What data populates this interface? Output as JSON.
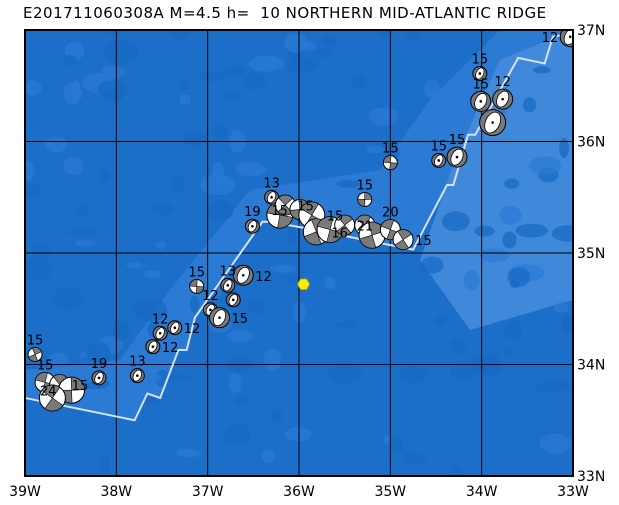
{
  "title": "E201711060308A M=4.5 h=  10 NORTHERN MID-ATLANTIC RIDGE",
  "map": {
    "lon_range": [
      -39,
      -33
    ],
    "lat_range": [
      33,
      37
    ],
    "lon_ticks": [
      {
        "v": -39,
        "label": "39W"
      },
      {
        "v": -38,
        "label": "38W"
      },
      {
        "v": -37,
        "label": "37W"
      },
      {
        "v": -36,
        "label": "36W"
      },
      {
        "v": -35,
        "label": "35W"
      },
      {
        "v": -34,
        "label": "34W"
      },
      {
        "v": -33,
        "label": "33W"
      }
    ],
    "lat_ticks": [
      {
        "v": 33,
        "label": "33N"
      },
      {
        "v": 34,
        "label": "34N"
      },
      {
        "v": 35,
        "label": "35N"
      },
      {
        "v": 36,
        "label": "36N"
      },
      {
        "v": 37,
        "label": "37N"
      }
    ],
    "colors": {
      "ocean_deep": "#1b6fc9",
      "ocean_mid": "#2b7bd4",
      "ocean_shallow": "#4a8edf",
      "ridge": "#d8e0f8",
      "compressional": "#7a7a7a",
      "dilatational": "#ffffff",
      "epicenter": "#ffee00"
    },
    "epicenter": {
      "lon": -35.95,
      "lat": 34.72,
      "icon": "yellow-hexagon"
    },
    "ridge_axis": [
      [
        -39,
        33.7
      ],
      [
        -37.8,
        33.5
      ],
      [
        -37.66,
        33.74
      ],
      [
        -37.52,
        33.7
      ],
      [
        -37.32,
        34.13
      ],
      [
        -37.23,
        34.13
      ],
      [
        -37.14,
        34.42
      ],
      [
        -36.4,
        35.28
      ],
      [
        -36.32,
        35.28
      ],
      [
        -35.91,
        35.22
      ],
      [
        -34.75,
        35.03
      ],
      [
        -34.38,
        35.61
      ],
      [
        -34.31,
        35.61
      ],
      [
        -34.15,
        36.06
      ],
      [
        -34.07,
        36.06
      ],
      [
        -33.6,
        36.75
      ],
      [
        -33.31,
        36.7
      ],
      [
        -33.22,
        36.94
      ],
      [
        -33,
        36.97
      ]
    ],
    "events": [
      {
        "lon": -33.03,
        "lat": 36.94,
        "depth": "12",
        "size": "m",
        "mech": "normal"
      },
      {
        "lon": -34.02,
        "lat": 36.61,
        "depth": "15",
        "size": "s",
        "mech": "normal"
      },
      {
        "lon": -34.01,
        "lat": 36.36,
        "depth": "15",
        "size": "m",
        "mech": "normal"
      },
      {
        "lon": -33.77,
        "lat": 36.38,
        "depth": "12",
        "size": "m",
        "mech": "normal"
      },
      {
        "lon": -33.88,
        "lat": 36.17,
        "depth": "",
        "size": "l",
        "mech": "normal"
      },
      {
        "lon": -35.0,
        "lat": 35.81,
        "depth": "15",
        "size": "s",
        "mech": "strike-slip"
      },
      {
        "lon": -34.47,
        "lat": 35.83,
        "depth": "15",
        "size": "s",
        "mech": "normal"
      },
      {
        "lon": -34.27,
        "lat": 35.86,
        "depth": "15",
        "size": "m",
        "mech": "normal"
      },
      {
        "lon": -36.51,
        "lat": 35.24,
        "depth": "19",
        "size": "s",
        "mech": "normal"
      },
      {
        "lon": -36.3,
        "lat": 35.5,
        "depth": "13",
        "size": "s",
        "mech": "normal"
      },
      {
        "lon": -36.21,
        "lat": 35.34,
        "depth": "",
        "size": "l",
        "mech": "strike-slip"
      },
      {
        "lon": -36.15,
        "lat": 35.43,
        "depth": "15",
        "size": "m",
        "mech": "strike-slip"
      },
      {
        "lon": -35.99,
        "lat": 35.39,
        "depth": "15",
        "size": "m",
        "mech": "strike-slip"
      },
      {
        "lon": -35.86,
        "lat": 35.34,
        "depth": "15",
        "size": "l",
        "mech": "strike-slip"
      },
      {
        "lon": -35.81,
        "lat": 35.19,
        "depth": "16",
        "size": "l",
        "mech": "strike-slip"
      },
      {
        "lon": -35.66,
        "lat": 35.21,
        "depth": "",
        "size": "l",
        "mech": "strike-slip"
      },
      {
        "lon": -35.5,
        "lat": 35.25,
        "depth": "21",
        "size": "m",
        "mech": "strike-slip"
      },
      {
        "lon": -35.28,
        "lat": 35.48,
        "depth": "15",
        "size": "s",
        "mech": "strike-slip"
      },
      {
        "lon": -35.28,
        "lat": 35.25,
        "depth": "",
        "size": "m",
        "mech": "strike-slip"
      },
      {
        "lon": -35.2,
        "lat": 35.16,
        "depth": "",
        "size": "l",
        "mech": "strike-slip"
      },
      {
        "lon": -35.0,
        "lat": 35.21,
        "depth": "20",
        "size": "m",
        "mech": "strike-slip"
      },
      {
        "lon": -34.86,
        "lat": 35.12,
        "depth": "15",
        "size": "m",
        "mech": "strike-slip"
      },
      {
        "lon": -37.12,
        "lat": 34.7,
        "depth": "15",
        "size": "s",
        "mech": "strike-slip"
      },
      {
        "lon": -36.78,
        "lat": 34.71,
        "depth": "13",
        "size": "s",
        "mech": "normal"
      },
      {
        "lon": -36.61,
        "lat": 34.8,
        "depth": "12",
        "size": "m",
        "mech": "normal"
      },
      {
        "lon": -36.97,
        "lat": 34.49,
        "depth": "12",
        "size": "s",
        "mech": "normal"
      },
      {
        "lon": -36.87,
        "lat": 34.42,
        "depth": "15",
        "size": "m",
        "mech": "normal"
      },
      {
        "lon": -36.72,
        "lat": 34.58,
        "depth": "",
        "size": "s",
        "mech": "normal"
      },
      {
        "lon": -37.52,
        "lat": 34.28,
        "depth": "12",
        "size": "s",
        "mech": "normal"
      },
      {
        "lon": -37.36,
        "lat": 34.33,
        "depth": "12",
        "size": "s",
        "mech": "normal"
      },
      {
        "lon": -37.6,
        "lat": 34.16,
        "depth": "12",
        "size": "s",
        "mech": "normal"
      },
      {
        "lon": -38.89,
        "lat": 34.09,
        "depth": "15",
        "size": "s",
        "mech": "strike-slip"
      },
      {
        "lon": -38.78,
        "lat": 33.84,
        "depth": "15",
        "size": "m",
        "mech": "strike-slip"
      },
      {
        "lon": -38.62,
        "lat": 33.82,
        "depth": "15",
        "size": "m",
        "mech": "strike-slip"
      },
      {
        "lon": -38.49,
        "lat": 33.77,
        "depth": "24",
        "size": "l",
        "mech": "strike-slip"
      },
      {
        "lon": -38.7,
        "lat": 33.7,
        "depth": "",
        "size": "l",
        "mech": "strike-slip"
      },
      {
        "lon": -38.19,
        "lat": 33.88,
        "depth": "19",
        "size": "s",
        "mech": "normal"
      },
      {
        "lon": -37.77,
        "lat": 33.9,
        "depth": "13",
        "size": "s",
        "mech": "normal"
      }
    ]
  }
}
